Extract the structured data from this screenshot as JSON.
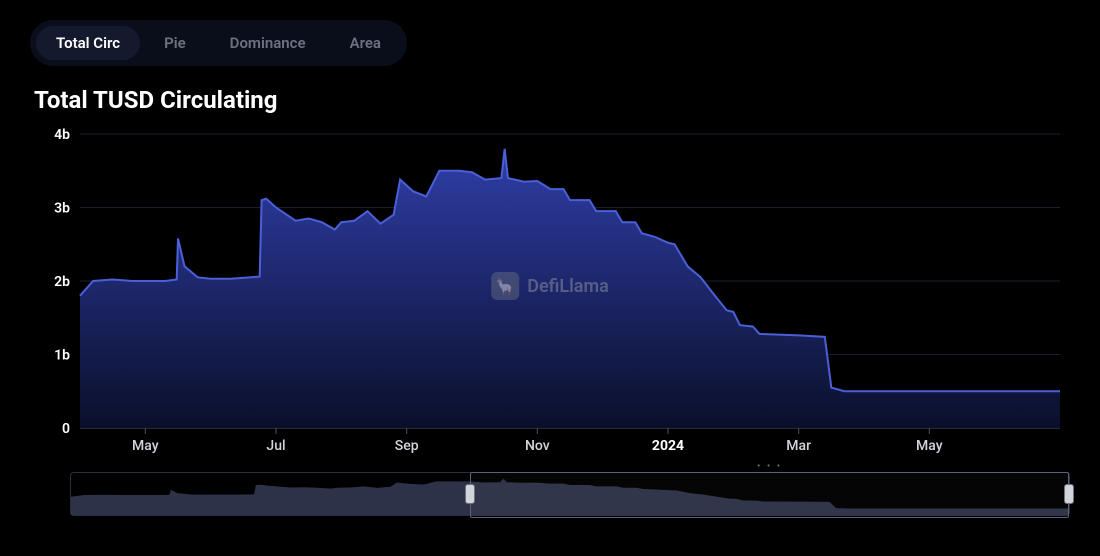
{
  "tabs": [
    {
      "label": "Total Circ",
      "active": true
    },
    {
      "label": "Pie",
      "active": false
    },
    {
      "label": "Dominance",
      "active": false
    },
    {
      "label": "Area",
      "active": false
    }
  ],
  "title": "Total TUSD Circulating",
  "watermark": {
    "icon_glyph": "🦙",
    "text": "DefiLlama"
  },
  "chart": {
    "type": "area",
    "background_color": "#000000",
    "grid_color": "#1a1f2e",
    "axis_color": "#4b5563",
    "line_color": "#4a5fd8",
    "area_gradient_top": "#2f3ea8",
    "area_gradient_bottom": "#0a0f2a",
    "line_width": 2,
    "title_fontsize": 24,
    "label_fontsize": 14,
    "y_axis": {
      "min": 0,
      "max": 4,
      "ticks": [
        0,
        1,
        2,
        3,
        4
      ],
      "tick_labels": [
        "0",
        "1b",
        "2b",
        "3b",
        "4b"
      ]
    },
    "x_axis": {
      "min": 0,
      "max": 15,
      "ticks": [
        1,
        3,
        5,
        7,
        9,
        11,
        13
      ],
      "tick_labels": [
        "May",
        "Jul",
        "Sep",
        "Nov",
        "2024",
        "Mar",
        "May"
      ],
      "bold_ticks": [
        9
      ]
    },
    "series": [
      {
        "x": 0.0,
        "y": 1.8
      },
      {
        "x": 0.2,
        "y": 2.0
      },
      {
        "x": 0.5,
        "y": 2.02
      },
      {
        "x": 0.8,
        "y": 2.0
      },
      {
        "x": 1.0,
        "y": 2.0
      },
      {
        "x": 1.3,
        "y": 2.0
      },
      {
        "x": 1.48,
        "y": 2.02
      },
      {
        "x": 1.5,
        "y": 2.58
      },
      {
        "x": 1.6,
        "y": 2.2
      },
      {
        "x": 1.8,
        "y": 2.05
      },
      {
        "x": 2.0,
        "y": 2.03
      },
      {
        "x": 2.3,
        "y": 2.03
      },
      {
        "x": 2.6,
        "y": 2.05
      },
      {
        "x": 2.75,
        "y": 2.06
      },
      {
        "x": 2.78,
        "y": 3.1
      },
      {
        "x": 2.85,
        "y": 3.12
      },
      {
        "x": 3.0,
        "y": 3.0
      },
      {
        "x": 3.3,
        "y": 2.82
      },
      {
        "x": 3.5,
        "y": 2.85
      },
      {
        "x": 3.7,
        "y": 2.8
      },
      {
        "x": 3.9,
        "y": 2.7
      },
      {
        "x": 4.0,
        "y": 2.8
      },
      {
        "x": 4.2,
        "y": 2.82
      },
      {
        "x": 4.4,
        "y": 2.95
      },
      {
        "x": 4.6,
        "y": 2.78
      },
      {
        "x": 4.8,
        "y": 2.9
      },
      {
        "x": 4.9,
        "y": 3.38
      },
      {
        "x": 5.1,
        "y": 3.22
      },
      {
        "x": 5.3,
        "y": 3.15
      },
      {
        "x": 5.5,
        "y": 3.5
      },
      {
        "x": 5.8,
        "y": 3.5
      },
      {
        "x": 6.0,
        "y": 3.48
      },
      {
        "x": 6.2,
        "y": 3.38
      },
      {
        "x": 6.45,
        "y": 3.4
      },
      {
        "x": 6.5,
        "y": 3.8
      },
      {
        "x": 6.55,
        "y": 3.4
      },
      {
        "x": 6.8,
        "y": 3.35
      },
      {
        "x": 7.0,
        "y": 3.36
      },
      {
        "x": 7.2,
        "y": 3.25
      },
      {
        "x": 7.4,
        "y": 3.25
      },
      {
        "x": 7.5,
        "y": 3.1
      },
      {
        "x": 7.8,
        "y": 3.1
      },
      {
        "x": 7.9,
        "y": 2.95
      },
      {
        "x": 8.2,
        "y": 2.95
      },
      {
        "x": 8.3,
        "y": 2.8
      },
      {
        "x": 8.5,
        "y": 2.8
      },
      {
        "x": 8.6,
        "y": 2.65
      },
      {
        "x": 8.8,
        "y": 2.6
      },
      {
        "x": 9.0,
        "y": 2.52
      },
      {
        "x": 9.1,
        "y": 2.5
      },
      {
        "x": 9.3,
        "y": 2.2
      },
      {
        "x": 9.5,
        "y": 2.05
      },
      {
        "x": 9.7,
        "y": 1.82
      },
      {
        "x": 9.9,
        "y": 1.6
      },
      {
        "x": 10.0,
        "y": 1.58
      },
      {
        "x": 10.1,
        "y": 1.4
      },
      {
        "x": 10.3,
        "y": 1.38
      },
      {
        "x": 10.4,
        "y": 1.28
      },
      {
        "x": 11.0,
        "y": 1.26
      },
      {
        "x": 11.4,
        "y": 1.24
      },
      {
        "x": 11.5,
        "y": 0.55
      },
      {
        "x": 11.7,
        "y": 0.5
      },
      {
        "x": 12.0,
        "y": 0.5
      },
      {
        "x": 12.5,
        "y": 0.5
      },
      {
        "x": 13.0,
        "y": 0.5
      },
      {
        "x": 13.5,
        "y": 0.5
      },
      {
        "x": 14.0,
        "y": 0.5
      },
      {
        "x": 14.5,
        "y": 0.5
      },
      {
        "x": 15.0,
        "y": 0.5
      }
    ]
  },
  "brush": {
    "selection_start_pct": 40,
    "selection_end_pct": 100,
    "mini_series_color": "#3a3f5a",
    "handle_color": "#d1d5db",
    "border_color": "#2a2f3e"
  }
}
